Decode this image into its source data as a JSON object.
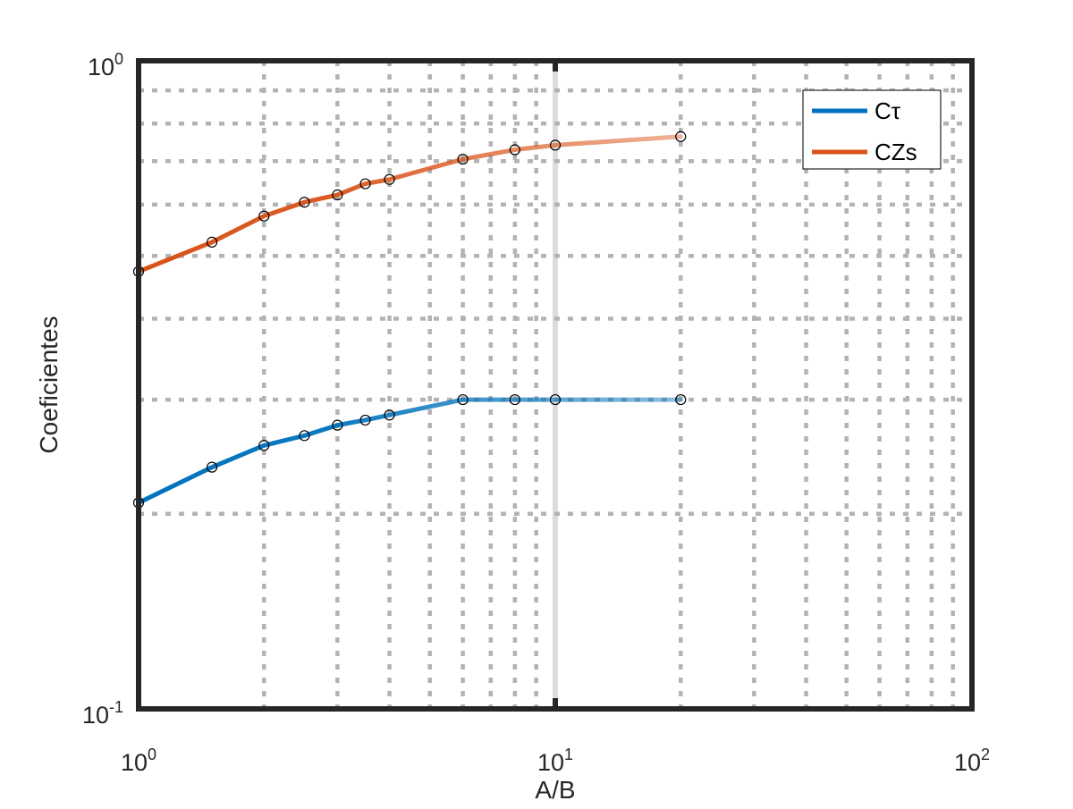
{
  "chart_data": {
    "type": "line",
    "xscale": "log",
    "yscale": "log",
    "xlabel": "A/B",
    "ylabel": "Coeficientes",
    "xlim": [
      1,
      100
    ],
    "ylim": [
      0.1,
      1
    ],
    "grid": true,
    "legend_position": "top-right",
    "x_ticks": [
      {
        "base": "10",
        "exp": "0",
        "value": 1
      },
      {
        "base": "10",
        "exp": "1",
        "value": 10
      },
      {
        "base": "10",
        "exp": "2",
        "value": 100
      }
    ],
    "y_ticks": [
      {
        "base": "10",
        "exp": "-1",
        "value": 0.1
      },
      {
        "base": "10",
        "exp": "0",
        "value": 1
      }
    ],
    "series": [
      {
        "name": "Cτ",
        "color": "#0072BD",
        "x": [
          1,
          1.5,
          2,
          2.5,
          3,
          3.5,
          4,
          6,
          8,
          10,
          20
        ],
        "y": [
          0.208,
          0.236,
          0.255,
          0.264,
          0.274,
          0.279,
          0.284,
          0.3,
          0.3,
          0.3,
          0.3
        ]
      },
      {
        "name": "CZs",
        "color": "#D95319",
        "x": [
          1,
          1.5,
          2,
          2.5,
          3,
          3.5,
          4,
          6,
          8,
          10,
          20
        ],
        "y": [
          0.473,
          0.525,
          0.576,
          0.605,
          0.621,
          0.646,
          0.656,
          0.705,
          0.729,
          0.741,
          0.764
        ]
      }
    ],
    "marker_color": "#000000",
    "grid_color": "#b3b3b3",
    "axis_color": "#262626"
  }
}
